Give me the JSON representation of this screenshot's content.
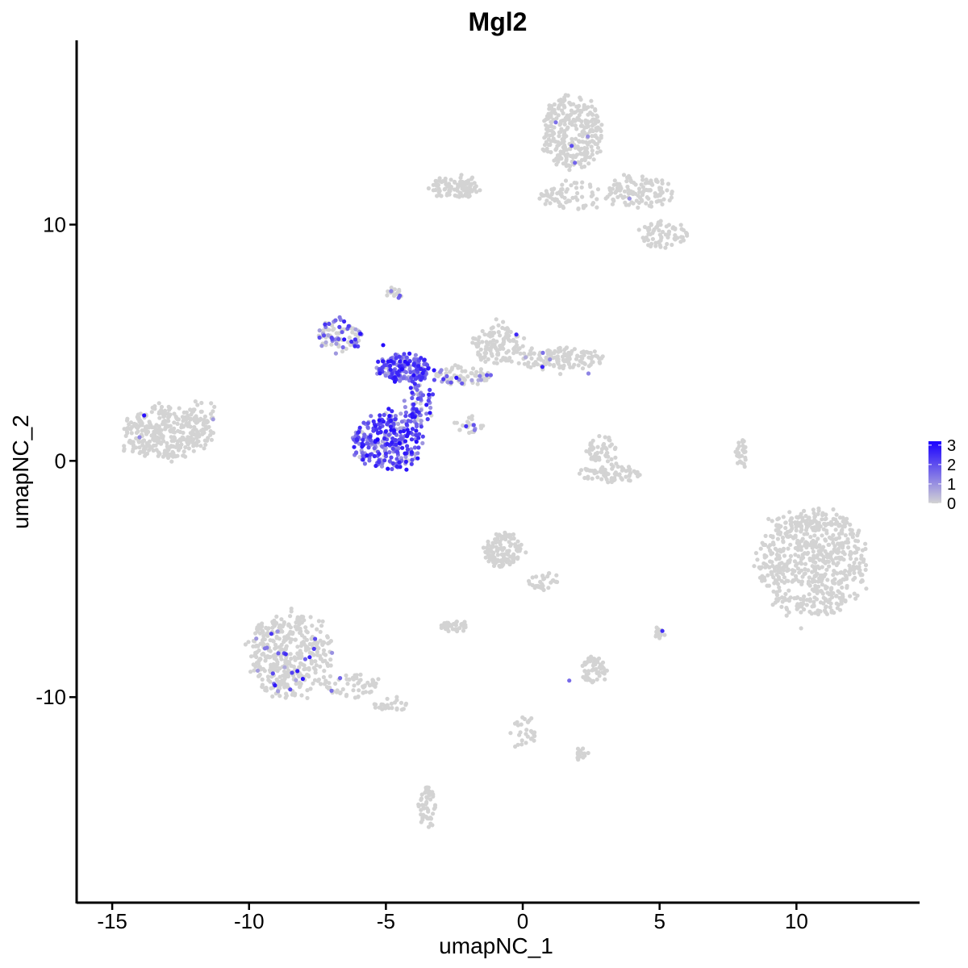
{
  "chart_data": {
    "type": "scatter",
    "title": "Mgl2",
    "xlabel": "umapNC_1",
    "ylabel": "umapNC_2",
    "xlim": [
      -16.3,
      14.5
    ],
    "ylim": [
      -18.7,
      17.8
    ],
    "x_ticks": [
      -15,
      -10,
      -5,
      0,
      5,
      10
    ],
    "x_tick_labels": [
      "-15",
      "-10",
      "-5",
      "0",
      "5",
      "10"
    ],
    "y_ticks": [
      10,
      0,
      -10
    ],
    "y_tick_labels": [
      "10",
      "0",
      "-10"
    ],
    "grid": false,
    "color_scale": {
      "low": "#d3d3d3",
      "high": "#1a00ff",
      "min": 0,
      "max": 3.2
    },
    "legend": {
      "position": "right",
      "breaks": [
        "3",
        "2",
        "1",
        "0"
      ]
    },
    "clusters": [
      {
        "cx": -13.0,
        "cy": 1.2,
        "rx": 1.6,
        "ry": 1.1,
        "n": 320,
        "expr": 0.02
      },
      {
        "cx": -11.8,
        "cy": 1.8,
        "rx": 0.6,
        "ry": 0.8,
        "n": 40,
        "expr": 0.02
      },
      {
        "cx": -8.5,
        "cy": -8.2,
        "rx": 1.5,
        "ry": 1.8,
        "n": 420,
        "expr": 0.05
      },
      {
        "cx": -6.3,
        "cy": -9.5,
        "rx": 1.0,
        "ry": 0.5,
        "n": 60,
        "expr": 0.03
      },
      {
        "cx": -4.8,
        "cy": -10.3,
        "rx": 0.6,
        "ry": 0.3,
        "n": 25,
        "expr": 0.0
      },
      {
        "cx": -4.3,
        "cy": 3.9,
        "rx": 1.0,
        "ry": 0.6,
        "n": 170,
        "expr": 0.95
      },
      {
        "cx": -4.9,
        "cy": 0.8,
        "rx": 1.3,
        "ry": 1.2,
        "n": 280,
        "expr": 0.92
      },
      {
        "cx": -6.7,
        "cy": 5.3,
        "rx": 0.8,
        "ry": 0.7,
        "n": 90,
        "expr": 0.5
      },
      {
        "cx": -3.8,
        "cy": 2.4,
        "rx": 0.5,
        "ry": 1.0,
        "n": 70,
        "expr": 0.8
      },
      {
        "cx": -2.2,
        "cy": 3.6,
        "rx": 1.0,
        "ry": 0.4,
        "n": 80,
        "expr": 0.18
      },
      {
        "cx": -0.9,
        "cy": 5.0,
        "rx": 0.9,
        "ry": 0.9,
        "n": 120,
        "expr": 0.02
      },
      {
        "cx": 1.3,
        "cy": 4.3,
        "rx": 1.6,
        "ry": 0.5,
        "n": 130,
        "expr": 0.02
      },
      {
        "cx": -4.7,
        "cy": 7.1,
        "rx": 0.3,
        "ry": 0.3,
        "n": 15,
        "expr": 0.2
      },
      {
        "cx": 1.8,
        "cy": 13.9,
        "rx": 1.1,
        "ry": 1.5,
        "n": 300,
        "expr": 0.01
      },
      {
        "cx": -2.5,
        "cy": 11.6,
        "rx": 0.9,
        "ry": 0.5,
        "n": 90,
        "expr": 0.0
      },
      {
        "cx": 4.3,
        "cy": 11.4,
        "rx": 1.2,
        "ry": 0.7,
        "n": 120,
        "expr": 0.01
      },
      {
        "cx": 5.1,
        "cy": 9.6,
        "rx": 0.9,
        "ry": 0.6,
        "n": 70,
        "expr": 0.0
      },
      {
        "cx": 1.8,
        "cy": 11.2,
        "rx": 1.2,
        "ry": 0.6,
        "n": 70,
        "expr": 0.01
      },
      {
        "cx": 10.6,
        "cy": -4.3,
        "rx": 1.9,
        "ry": 2.3,
        "n": 650,
        "expr": 0.0
      },
      {
        "cx": -0.7,
        "cy": -3.8,
        "rx": 0.7,
        "ry": 0.7,
        "n": 120,
        "expr": 0.0
      },
      {
        "cx": 0.8,
        "cy": -5.1,
        "rx": 0.6,
        "ry": 0.4,
        "n": 30,
        "expr": 0.0
      },
      {
        "cx": 2.6,
        "cy": -8.9,
        "rx": 0.5,
        "ry": 0.6,
        "n": 60,
        "expr": 0.01
      },
      {
        "cx": -2.5,
        "cy": -7.0,
        "rx": 0.5,
        "ry": 0.25,
        "n": 35,
        "expr": 0.0
      },
      {
        "cx": 2.9,
        "cy": 0.5,
        "rx": 0.5,
        "ry": 0.6,
        "n": 50,
        "expr": 0.0
      },
      {
        "cx": 3.2,
        "cy": -0.5,
        "rx": 1.1,
        "ry": 0.4,
        "n": 70,
        "expr": 0.0
      },
      {
        "cx": -3.5,
        "cy": -14.6,
        "rx": 0.35,
        "ry": 0.9,
        "n": 50,
        "expr": 0.0
      },
      {
        "cx": 2.2,
        "cy": -12.4,
        "rx": 0.3,
        "ry": 0.3,
        "n": 15,
        "expr": 0.0
      },
      {
        "cx": 0.0,
        "cy": -11.4,
        "rx": 0.5,
        "ry": 0.8,
        "n": 30,
        "expr": 0.0
      },
      {
        "cx": 8.0,
        "cy": 0.3,
        "rx": 0.2,
        "ry": 0.7,
        "n": 30,
        "expr": 0.0
      },
      {
        "cx": 5.0,
        "cy": -7.3,
        "rx": 0.2,
        "ry": 0.3,
        "n": 15,
        "expr": 0.0
      },
      {
        "cx": -2.0,
        "cy": 1.5,
        "rx": 0.6,
        "ry": 0.4,
        "n": 25,
        "expr": 0.25
      }
    ],
    "highlight_points": [
      {
        "x": -5.3,
        "y": 0.9,
        "value": 3.2
      },
      {
        "x": -4.5,
        "y": 0.75,
        "value": 3.2
      },
      {
        "x": -5.1,
        "y": 4.9,
        "value": 3.0
      },
      {
        "x": -4.3,
        "y": 4.2,
        "value": 3.0
      },
      {
        "x": -4.9,
        "y": 2.2,
        "value": 2.8
      },
      {
        "x": 5.1,
        "y": -7.2,
        "value": 2.5
      },
      {
        "x": 1.7,
        "y": -9.3,
        "value": 1.6
      },
      {
        "x": 2.4,
        "y": 3.7,
        "value": 1.2
      },
      {
        "x": -14.0,
        "y": 1.0,
        "value": 1.2
      },
      {
        "x": 3.9,
        "y": 11.1,
        "value": 1.0
      }
    ]
  }
}
